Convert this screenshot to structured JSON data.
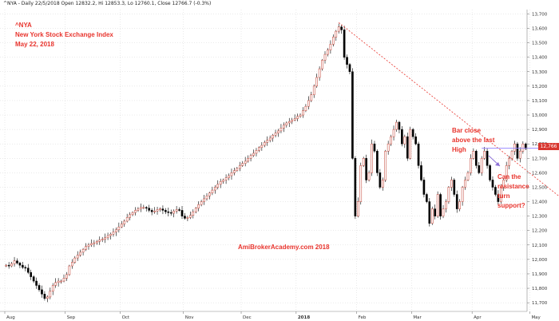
{
  "header": {
    "text": "^NYA - Daily 22/5/2018 Open 12832.2, Hi 12853.3, Lo 12760.1, Close 12766.7 (-0.3%)"
  },
  "annotations": {
    "title": [
      "^NYA",
      "New York Stock Exchange Index",
      "May 22, 2018"
    ],
    "bar_close_note": [
      "Bar close",
      "above the last",
      "High"
    ],
    "question": [
      "Can the",
      "resistance",
      "turn",
      "support?"
    ],
    "watermark": "AmiBrokerAcademy.com   2018"
  },
  "last_price_label": "12,766",
  "colors": {
    "up_body": "#ffffff",
    "candle_outline": "#000000",
    "down_body": "#000000",
    "grid": "#c9c9c9",
    "trendline": "#e8352e",
    "resistance": "#9b8cff",
    "text_red": "#e8352e",
    "arrow": "#8b6fd6"
  },
  "chart_data": {
    "type": "candlestick",
    "yaxis": {
      "ticks": [
        11700,
        11800,
        11900,
        12000,
        12100,
        12200,
        12300,
        12400,
        12500,
        12600,
        12700,
        12800,
        12900,
        13000,
        13100,
        13200,
        13300,
        13400,
        13500,
        13600,
        13700
      ],
      "tick_labels": [
        "11,700",
        "11,800",
        "11,900",
        "12,000",
        "12,100",
        "12,200",
        "12,300",
        "12,400",
        "12,500",
        "12,600",
        "12,700",
        "12,800",
        "12,900",
        "13,000",
        "13,100",
        "13,200",
        "13,300",
        "13,400",
        "13,500",
        "13,600",
        "13,700"
      ],
      "ylim": [
        11640,
        13730
      ]
    },
    "xaxis": {
      "months": [
        "Aug",
        "Sep",
        "Oct",
        "Nov",
        "Dec",
        "2018",
        "Feb",
        "Mar",
        "Apr",
        "May"
      ],
      "month_start_index": [
        0,
        22,
        42,
        65,
        86,
        106,
        128,
        148,
        170,
        191
      ]
    },
    "closes": [
      11960,
      11955,
      11970,
      11990,
      11975,
      11960,
      11945,
      11940,
      11910,
      11880,
      11850,
      11820,
      11790,
      11760,
      11730,
      11740,
      11780,
      11820,
      11840,
      11850,
      11850,
      11870,
      11895,
      11955,
      11980,
      12010,
      12030,
      12050,
      12070,
      12090,
      12100,
      12110,
      12115,
      12125,
      12135,
      12140,
      12150,
      12165,
      12175,
      12190,
      12205,
      12225,
      12245,
      12265,
      12290,
      12310,
      12325,
      12340,
      12350,
      12360,
      12360,
      12355,
      12340,
      12330,
      12335,
      12345,
      12350,
      12340,
      12330,
      12325,
      12320,
      12335,
      12345,
      12340,
      12300,
      12285,
      12290,
      12305,
      12330,
      12355,
      12380,
      12400,
      12420,
      12440,
      12460,
      12480,
      12500,
      12520,
      12540,
      12550,
      12565,
      12580,
      12600,
      12615,
      12630,
      12650,
      12665,
      12680,
      12700,
      12720,
      12735,
      12755,
      12775,
      12790,
      12810,
      12825,
      12840,
      12860,
      12875,
      12890,
      12910,
      12930,
      12945,
      12955,
      12965,
      12975,
      12990,
      13000,
      13030,
      13060,
      13100,
      13140,
      13200,
      13260,
      13320,
      13380,
      13420,
      13450,
      13490,
      13540,
      13580,
      13610,
      13590,
      13400,
      13350,
      13300,
      12700,
      12300,
      12400,
      12650,
      12700,
      12550,
      12600,
      12800,
      12750,
      12600,
      12500,
      12550,
      12750,
      12800,
      12850,
      12900,
      12950,
      12900,
      12800,
      12850,
      12700,
      12900,
      12850,
      12800,
      12650,
      12550,
      12450,
      12400,
      12250,
      12350,
      12300,
      12450,
      12300,
      12350,
      12400,
      12500,
      12550,
      12450,
      12350,
      12400,
      12500,
      12550,
      12600,
      12700,
      12750,
      12650,
      12600,
      12700,
      12750,
      12650,
      12550,
      12500,
      12450,
      12400,
      12500,
      12550,
      12650,
      12700,
      12750,
      12800,
      12700,
      12750,
      12800,
      12766
    ],
    "trendline": {
      "from": {
        "index": 121,
        "value": 13640
      },
      "to": {
        "index": 205,
        "value": 12380
      }
    },
    "resistance_line": {
      "value": 12770,
      "from_index": 173,
      "to_index": 208
    }
  }
}
